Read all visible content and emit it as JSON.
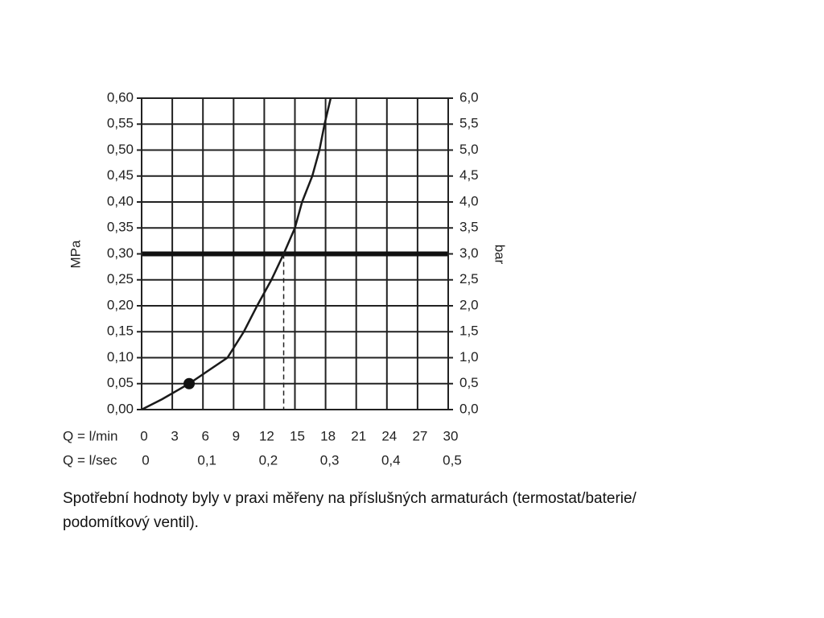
{
  "chart_data": {
    "type": "line",
    "y_label": "MPa",
    "y2_label": "bar",
    "x_label": "Q = l/min",
    "x2_label": "Q = l/sec",
    "x": [
      0,
      2,
      4.65,
      8.4,
      10,
      11.3,
      12.7,
      13.9,
      15,
      15.7,
      16.7,
      17.4,
      17.9,
      18.5
    ],
    "series": [
      {
        "color": "#1a1a1a",
        "values": [
          0,
          0.02,
          0.05,
          0.1,
          0.15,
          0.2,
          0.25,
          0.3,
          0.35,
          0.4,
          0.45,
          0.5,
          0.55,
          0.6
        ]
      }
    ],
    "xlim": [
      0,
      30
    ],
    "xticks": [
      0,
      3,
      6,
      9,
      12,
      15,
      18,
      21,
      24,
      27,
      30
    ],
    "x2lim": [
      0,
      0.5
    ],
    "x2ticks": [
      0,
      {
        "value": 0.1,
        "label": "0,1"
      },
      {
        "value": 0.2,
        "label": "0,2"
      },
      {
        "value": 0.3,
        "label": "0,3"
      },
      {
        "value": 0.4,
        "label": "0,4"
      },
      {
        "value": 0.5,
        "label": "0,5"
      }
    ],
    "ylim": [
      0,
      0.6
    ],
    "yticks": [
      {
        "value": 0,
        "label": "0,00"
      },
      {
        "value": 0.05,
        "label": "0,05"
      },
      {
        "value": 0.1,
        "label": "0,10"
      },
      {
        "value": 0.15,
        "label": "0,15"
      },
      {
        "value": 0.2,
        "label": "0,20"
      },
      {
        "value": 0.25,
        "label": "0,25"
      },
      {
        "value": 0.3,
        "label": "0,30"
      },
      {
        "value": 0.35,
        "label": "0,35"
      },
      {
        "value": 0.4,
        "label": "0,40"
      },
      {
        "value": 0.45,
        "label": "0,45"
      },
      {
        "value": 0.5,
        "label": "0,50"
      },
      {
        "value": 0.55,
        "label": "0,55"
      },
      {
        "value": 0.6,
        "label": "0,60"
      }
    ],
    "y2lim": [
      0,
      6
    ],
    "y2ticks": [
      {
        "value": 0,
        "label": "0,0"
      },
      {
        "value": 0.5,
        "label": "0,5"
      },
      {
        "value": 1,
        "label": "1,0"
      },
      {
        "value": 1.5,
        "label": "1,5"
      },
      {
        "value": 2,
        "label": "2,0"
      },
      {
        "value": 2.5,
        "label": "2,5"
      },
      {
        "value": 3,
        "label": "3,0"
      },
      {
        "value": 3.5,
        "label": "3,5"
      },
      {
        "value": 4,
        "label": "4,0"
      },
      {
        "value": 4.5,
        "label": "4,5"
      },
      {
        "value": 5,
        "label": "5,0"
      },
      {
        "value": 5.5,
        "label": "5,5"
      },
      {
        "value": 6,
        "label": "6,0"
      }
    ],
    "grid": true,
    "reference_y": 0.3,
    "operating_point": {
      "x": 13.9,
      "y": 0.3
    },
    "marker": {
      "x": 4.65,
      "y": 0.05
    }
  },
  "caption": [
    "Spotřební hodnoty byly v praxi měřeny na příslušných armaturách (termostat/baterie/",
    "podomítkový ventil)."
  ]
}
